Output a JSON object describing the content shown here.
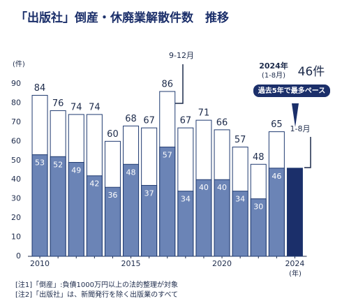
{
  "chart_data": {
    "type": "bar",
    "title": "「出版社」倒産・休廃業解散件数　推移",
    "y_label": "(件)",
    "x_label": "(年)",
    "categories": [
      2010,
      null,
      null,
      null,
      null,
      2015,
      null,
      null,
      null,
      null,
      2020,
      null,
      null,
      null,
      2024
    ],
    "series": [
      {
        "color": "#ffffff",
        "values": [
          84,
          76,
          74,
          74,
          60,
          68,
          67,
          86,
          67,
          71,
          66,
          57,
          48,
          65,
          null
        ]
      },
      {
        "color": "#6b84b6",
        "values": [
          53,
          52,
          49,
          42,
          36,
          48,
          37,
          57,
          34,
          40,
          40,
          34,
          30,
          46,
          null
        ]
      },
      {
        "color": "#1b2f6a",
        "values": [
          null,
          null,
          null,
          null,
          null,
          null,
          null,
          null,
          null,
          null,
          null,
          null,
          null,
          null,
          46
        ],
        "value_labels": [
          null,
          null,
          null,
          null,
          null,
          null,
          null,
          null,
          null,
          null,
          null,
          null,
          null,
          null,
          "46件"
        ]
      }
    ],
    "ylim": [
      0,
      90
    ],
    "yticks": [
      0,
      10,
      20,
      30,
      40,
      50,
      60,
      70,
      80,
      90
    ],
    "grid": false,
    "annotations": [
      "9-12月",
      "1-8月",
      "2024年",
      "(1-8月)",
      "過去5年で最多ペース"
    ],
    "notes": [
      "[注1]「倒産」:負債1000万円以上の法的整理が対象",
      "[注2]「出版社」は、新聞発行を除く出版業のすべて"
    ]
  }
}
